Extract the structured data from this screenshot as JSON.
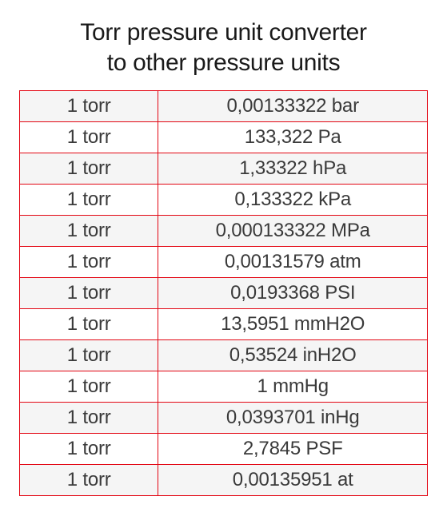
{
  "title": {
    "line1": "Torr pressure unit converter",
    "line2": "to other pressure units"
  },
  "table": {
    "border_color": "#e30613",
    "row_odd_bg": "#f5f5f5",
    "row_even_bg": "#ffffff",
    "text_color": "#3a3a3a",
    "font_size": 24,
    "col_left_width_pct": 34,
    "col_right_width_pct": 66,
    "rows": [
      {
        "from": "1 torr",
        "to": "0,00133322 bar"
      },
      {
        "from": "1 torr",
        "to": "133,322 Pa"
      },
      {
        "from": "1 torr",
        "to": "1,33322 hPa"
      },
      {
        "from": "1 torr",
        "to": "0,133322 kPa"
      },
      {
        "from": "1 torr",
        "to": "0,000133322 MPa"
      },
      {
        "from": "1 torr",
        "to": "0,00131579 atm"
      },
      {
        "from": "1 torr",
        "to": "0,0193368 PSI"
      },
      {
        "from": "1 torr",
        "to": "13,5951 mmH2O"
      },
      {
        "from": "1 torr",
        "to": "0,53524 inH2O"
      },
      {
        "from": "1 torr",
        "to": "1 mmHg"
      },
      {
        "from": "1 torr",
        "to": "0,0393701 inHg"
      },
      {
        "from": "1 torr",
        "to": "2,7845 PSF"
      },
      {
        "from": "1 torr",
        "to": "0,00135951 at"
      }
    ]
  }
}
